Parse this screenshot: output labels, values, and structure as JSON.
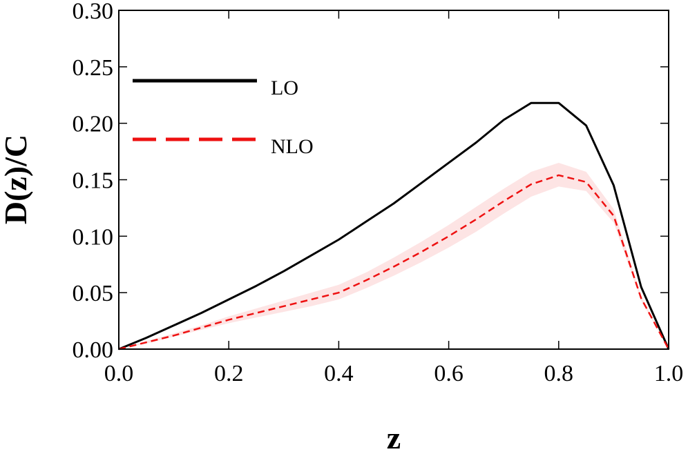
{
  "chart_data": {
    "type": "line",
    "xlabel": "z",
    "ylabel": "D(z)/C",
    "x": [
      0,
      0.05,
      0.1,
      0.15,
      0.2,
      0.25,
      0.3,
      0.35,
      0.4,
      0.45,
      0.5,
      0.55,
      0.6,
      0.65,
      0.7,
      0.75,
      0.8,
      0.85,
      0.9,
      0.95,
      1.0
    ],
    "series": [
      {
        "name": "LO",
        "color": "#000000",
        "dash": "solid",
        "values": [
          0,
          0.01,
          0.021,
          0.032,
          0.044,
          0.056,
          0.069,
          0.083,
          0.097,
          0.113,
          0.129,
          0.147,
          0.165,
          0.183,
          0.203,
          0.218,
          0.218,
          0.198,
          0.145,
          0.055,
          0
        ]
      },
      {
        "name": "NLO",
        "color": "#ee1111",
        "dash": "dashed",
        "band_color": "#fde4e4",
        "values": [
          0,
          0.006,
          0.012,
          0.019,
          0.026,
          0.032,
          0.038,
          0.044,
          0.05,
          0.061,
          0.073,
          0.086,
          0.1,
          0.115,
          0.131,
          0.146,
          0.154,
          0.148,
          0.118,
          0.045,
          0
        ],
        "band_lower": [
          0,
          0.005,
          0.011,
          0.017,
          0.023,
          0.028,
          0.033,
          0.038,
          0.044,
          0.054,
          0.065,
          0.077,
          0.09,
          0.104,
          0.12,
          0.135,
          0.144,
          0.14,
          0.112,
          0.043,
          0
        ],
        "band_upper": [
          0,
          0.007,
          0.014,
          0.021,
          0.029,
          0.036,
          0.043,
          0.05,
          0.057,
          0.068,
          0.081,
          0.095,
          0.11,
          0.126,
          0.142,
          0.157,
          0.165,
          0.157,
          0.124,
          0.047,
          0
        ]
      }
    ],
    "xlim": [
      0,
      1.0
    ],
    "ylim": [
      0,
      0.3
    ],
    "xticks": [
      {
        "value": 0,
        "label": "0.0"
      },
      {
        "value": 0.2,
        "label": "0.2"
      },
      {
        "value": 0.4,
        "label": "0.4"
      },
      {
        "value": 0.6,
        "label": "0.6"
      },
      {
        "value": 0.8,
        "label": "0.8"
      },
      {
        "value": 1.0,
        "label": "1.0"
      }
    ],
    "yticks": [
      {
        "value": 0,
        "label": "0.00"
      },
      {
        "value": 0.05,
        "label": "0.05"
      },
      {
        "value": 0.1,
        "label": "0.10"
      },
      {
        "value": 0.15,
        "label": "0.15"
      },
      {
        "value": 0.2,
        "label": "0.20"
      },
      {
        "value": 0.25,
        "label": "0.25"
      },
      {
        "value": 0.3,
        "label": "0.30"
      }
    ],
    "legend": "upper left"
  }
}
